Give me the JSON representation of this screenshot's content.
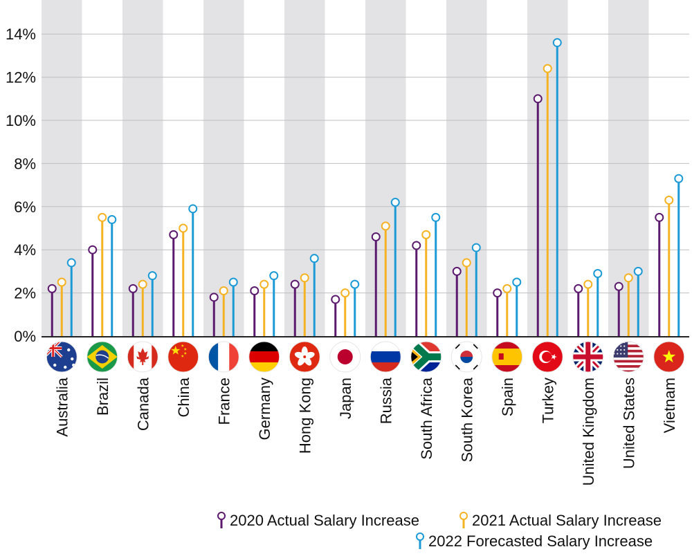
{
  "chart_data": {
    "type": "lollipop",
    "categories": [
      "Australia",
      "Brazil",
      "Canada",
      "China",
      "France",
      "Germany",
      "Hong Kong",
      "Japan",
      "Russia",
      "South Africa",
      "South Korea",
      "Spain",
      "Turkey",
      "United Kingdom",
      "United States",
      "Vietnam"
    ],
    "flags": [
      "australia-flag-icon",
      "brazil-flag-icon",
      "canada-flag-icon",
      "china-flag-icon",
      "france-flag-icon",
      "germany-flag-icon",
      "hong-kong-flag-icon",
      "japan-flag-icon",
      "russia-flag-icon",
      "south-africa-flag-icon",
      "south-korea-flag-icon",
      "spain-flag-icon",
      "turkey-flag-icon",
      "united-kingdom-flag-icon",
      "united-states-flag-icon",
      "vietnam-flag-icon"
    ],
    "series": [
      {
        "name": "2020 Actual Salary Increase",
        "color": "#5b1a6e",
        "values": [
          2.2,
          4.0,
          2.2,
          4.7,
          1.8,
          2.1,
          2.4,
          1.7,
          4.6,
          4.2,
          3.0,
          2.0,
          11.0,
          2.2,
          2.3,
          5.5
        ]
      },
      {
        "name": "2021 Actual Salary Increase",
        "color": "#f5b323",
        "values": [
          2.5,
          5.5,
          2.4,
          5.0,
          2.1,
          2.4,
          2.7,
          2.0,
          5.1,
          4.7,
          3.4,
          2.2,
          12.4,
          2.4,
          2.7,
          6.3
        ]
      },
      {
        "name": "2022 Forecasted Salary Increase",
        "color": "#1b9ad6",
        "values": [
          3.4,
          5.4,
          2.8,
          5.9,
          2.5,
          2.8,
          3.6,
          2.4,
          6.2,
          5.5,
          4.1,
          2.5,
          13.6,
          2.9,
          3.0,
          7.3
        ]
      }
    ],
    "y_ticks": [
      "0%",
      "2%",
      "4%",
      "6%",
      "8%",
      "10%",
      "12%",
      "14%"
    ],
    "y_tick_values": [
      0,
      2,
      4,
      6,
      8,
      10,
      12,
      14
    ],
    "ylim": [
      0,
      15.5
    ],
    "grid": true,
    "legend_position": "bottom-right",
    "stripe_color": "#e3e3e5",
    "grid_color": "#bfbfbf"
  }
}
